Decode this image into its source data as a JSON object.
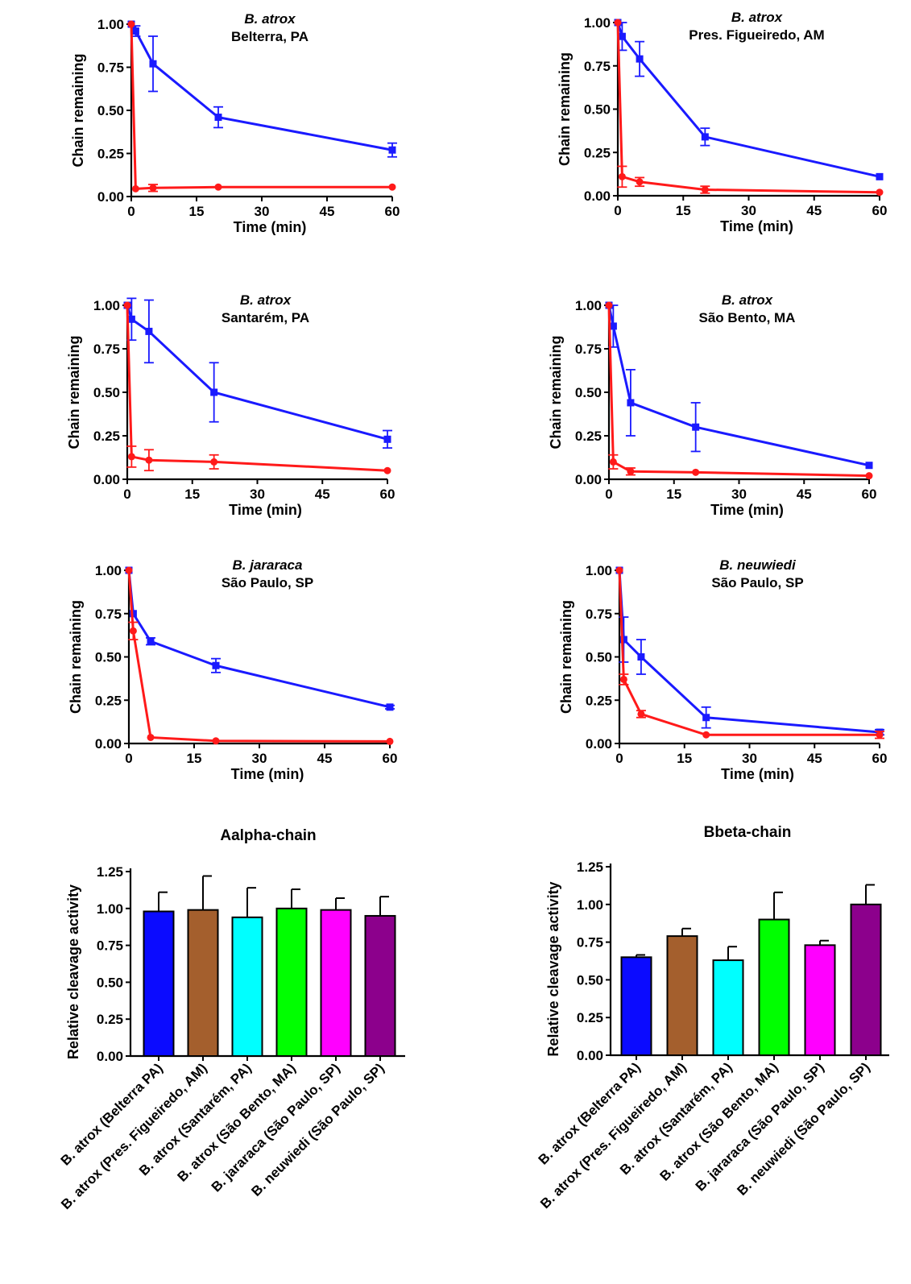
{
  "colors": {
    "aalpha": "#ff1a1a",
    "bbeta": "#1a1aff",
    "axis": "#000000"
  },
  "chart_data": [
    {
      "type": "line",
      "title": "B. atrox",
      "subtitle": "Belterra, PA",
      "xlabel": "Time (min)",
      "ylabel": "Chain remaining",
      "xlim": [
        0,
        60
      ],
      "ylim": [
        0,
        1
      ],
      "xticks": [
        "0",
        "15",
        "30",
        "45",
        "60"
      ],
      "yticks": [
        "0.00",
        "0.25",
        "0.50",
        "0.75",
        "1.00"
      ],
      "series": [
        {
          "marker": "square",
          "color": "#1a1aff",
          "x": [
            0,
            1,
            5,
            20,
            60
          ],
          "y": [
            1.0,
            0.96,
            0.77,
            0.46,
            0.27
          ],
          "err": [
            0,
            0.03,
            0.16,
            0.06,
            0.04
          ]
        },
        {
          "marker": "circle",
          "color": "#ff1a1a",
          "x": [
            0,
            1,
            5,
            20,
            60
          ],
          "y": [
            1.0,
            0.045,
            0.05,
            0.055,
            0.055
          ],
          "err": [
            0,
            0,
            0.02,
            0,
            0
          ]
        }
      ]
    },
    {
      "type": "line",
      "title": "B. atrox",
      "subtitle": "Pres. Figueiredo, AM",
      "xlabel": "Time (min)",
      "ylabel": "Chain remaining",
      "xlim": [
        0,
        60
      ],
      "ylim": [
        0,
        1
      ],
      "xticks": [
        "0",
        "15",
        "30",
        "45",
        "60"
      ],
      "yticks": [
        "0.00",
        "0.25",
        "0.50",
        "0.75",
        "1.00"
      ],
      "series": [
        {
          "marker": "square",
          "color": "#1a1aff",
          "x": [
            0,
            1,
            5,
            20,
            60
          ],
          "y": [
            1.0,
            0.92,
            0.79,
            0.34,
            0.11
          ],
          "err": [
            0,
            0.08,
            0.1,
            0.05,
            0
          ]
        },
        {
          "marker": "circle",
          "color": "#ff1a1a",
          "x": [
            0,
            1,
            5,
            20,
            60
          ],
          "y": [
            1.0,
            0.11,
            0.08,
            0.035,
            0.02
          ],
          "err": [
            0,
            0.06,
            0.025,
            0.02,
            0
          ]
        }
      ]
    },
    {
      "type": "line",
      "title": "B. atrox",
      "subtitle": "Santarém, PA",
      "xlabel": "Time (min)",
      "ylabel": "Chain remaining",
      "xlim": [
        0,
        60
      ],
      "ylim": [
        0,
        1
      ],
      "xticks": [
        "0",
        "15",
        "30",
        "45",
        "60"
      ],
      "yticks": [
        "0.00",
        "0.25",
        "0.50",
        "0.75",
        "1.00"
      ],
      "series": [
        {
          "marker": "square",
          "color": "#1a1aff",
          "x": [
            0,
            1,
            5,
            20,
            60
          ],
          "y": [
            1.0,
            0.92,
            0.85,
            0.5,
            0.23
          ],
          "err": [
            0,
            0.12,
            0.18,
            0.17,
            0.05
          ]
        },
        {
          "marker": "circle",
          "color": "#ff1a1a",
          "x": [
            0,
            1,
            5,
            20,
            60
          ],
          "y": [
            1.0,
            0.13,
            0.11,
            0.1,
            0.05
          ],
          "err": [
            0,
            0.06,
            0.06,
            0.04,
            0
          ]
        }
      ]
    },
    {
      "type": "line",
      "title": "B. atrox",
      "subtitle": "São Bento, MA",
      "xlabel": "Time (min)",
      "ylabel": "Chain remaining",
      "xlim": [
        0,
        60
      ],
      "ylim": [
        0,
        1
      ],
      "xticks": [
        "0",
        "15",
        "30",
        "45",
        "60"
      ],
      "yticks": [
        "0.00",
        "0.25",
        "0.50",
        "0.75",
        "1.00"
      ],
      "series": [
        {
          "marker": "square",
          "color": "#1a1aff",
          "x": [
            0,
            1,
            5,
            20,
            60
          ],
          "y": [
            1.0,
            0.88,
            0.44,
            0.3,
            0.08
          ],
          "err": [
            0,
            0.12,
            0.19,
            0.14,
            0
          ]
        },
        {
          "marker": "circle",
          "color": "#ff1a1a",
          "x": [
            0,
            1,
            5,
            20,
            60
          ],
          "y": [
            1.0,
            0.1,
            0.045,
            0.04,
            0.02
          ],
          "err": [
            0,
            0.04,
            0.02,
            0,
            0
          ]
        }
      ]
    },
    {
      "type": "line",
      "title": "B. jararaca",
      "subtitle": "São Paulo, SP",
      "xlabel": "Time (min)",
      "ylabel": "Chain remaining",
      "xlim": [
        0,
        60
      ],
      "ylim": [
        0,
        1
      ],
      "xticks": [
        "0",
        "15",
        "30",
        "45",
        "60"
      ],
      "yticks": [
        "0.00",
        "0.25",
        "0.50",
        "0.75",
        "1.00"
      ],
      "series": [
        {
          "marker": "square",
          "color": "#1a1aff",
          "x": [
            0,
            1,
            5,
            20,
            60
          ],
          "y": [
            1.0,
            0.75,
            0.59,
            0.45,
            0.21
          ],
          "err": [
            0,
            0,
            0.02,
            0.04,
            0.01
          ]
        },
        {
          "marker": "circle",
          "color": "#ff1a1a",
          "x": [
            0,
            1,
            5,
            20,
            60
          ],
          "y": [
            1.0,
            0.65,
            0.035,
            0.015,
            0.012
          ],
          "err": [
            0,
            0.05,
            0,
            0,
            0
          ]
        }
      ]
    },
    {
      "type": "line",
      "title": "B. neuwiedi",
      "subtitle": "São Paulo, SP",
      "xlabel": "Time (min)",
      "ylabel": "Chain remaining",
      "xlim": [
        0,
        60
      ],
      "ylim": [
        0,
        1
      ],
      "xticks": [
        "0",
        "15",
        "30",
        "45",
        "60"
      ],
      "yticks": [
        "0.00",
        "0.25",
        "0.50",
        "0.75",
        "1.00"
      ],
      "series": [
        {
          "marker": "square",
          "color": "#1a1aff",
          "x": [
            0,
            1,
            5,
            20,
            60
          ],
          "y": [
            1.0,
            0.6,
            0.5,
            0.15,
            0.065
          ],
          "err": [
            0,
            0.13,
            0.1,
            0.06,
            0.015
          ]
        },
        {
          "marker": "circle",
          "color": "#ff1a1a",
          "x": [
            0,
            1,
            5,
            20,
            60
          ],
          "y": [
            1.0,
            0.37,
            0.17,
            0.05,
            0.05
          ],
          "err": [
            0,
            0.03,
            0.02,
            0,
            0.02
          ]
        }
      ]
    },
    {
      "type": "bar",
      "title": "Aalpha-chain",
      "title_color": "#ff1a1a",
      "ylabel": "Relative cleavage activity",
      "ylim": [
        0,
        1.25
      ],
      "yticks": [
        "0.00",
        "0.25",
        "0.50",
        "0.75",
        "1.00",
        "1.25"
      ],
      "categories": [
        "B. atrox (Belterra PA)",
        "B. atrox (Pres. Figueiredo, AM)",
        "B. atrox (Santarém, PA)",
        "B. atrox (São Bento, MA)",
        "B. jararaca (São Paulo, SP)",
        "B. neuwiedi (São Paulo, SP)"
      ],
      "bar_colors": [
        "#0b0bff",
        "#a45f2d",
        "#00ffff",
        "#00ff00",
        "#ff00ff",
        "#8c008c"
      ],
      "values": [
        0.98,
        0.99,
        0.94,
        1.0,
        0.99,
        0.95
      ],
      "err": [
        0.13,
        0.23,
        0.2,
        0.13,
        0.08,
        0.13
      ]
    },
    {
      "type": "bar",
      "title": "Bbeta-chain",
      "title_color": "#1a1aff",
      "ylabel": "Relative cleavage activity",
      "ylim": [
        0,
        1.25
      ],
      "yticks": [
        "0.00",
        "0.25",
        "0.50",
        "0.75",
        "1.00",
        "1.25"
      ],
      "categories": [
        "B. atrox (Belterra PA)",
        "B. atrox (Pres. Figueiredo, AM)",
        "B. atrox (Santarém, PA)",
        "B. atrox (São Bento, MA)",
        "B. jararaca (São Paulo, SP)",
        "B. neuwiedi (São Paulo, SP)"
      ],
      "bar_colors": [
        "#0b0bff",
        "#a45f2d",
        "#00ffff",
        "#00ff00",
        "#ff00ff",
        "#8c008c"
      ],
      "values": [
        0.65,
        0.79,
        0.63,
        0.9,
        0.73,
        1.0
      ],
      "err": [
        0.015,
        0.05,
        0.09,
        0.18,
        0.03,
        0.13
      ]
    }
  ]
}
